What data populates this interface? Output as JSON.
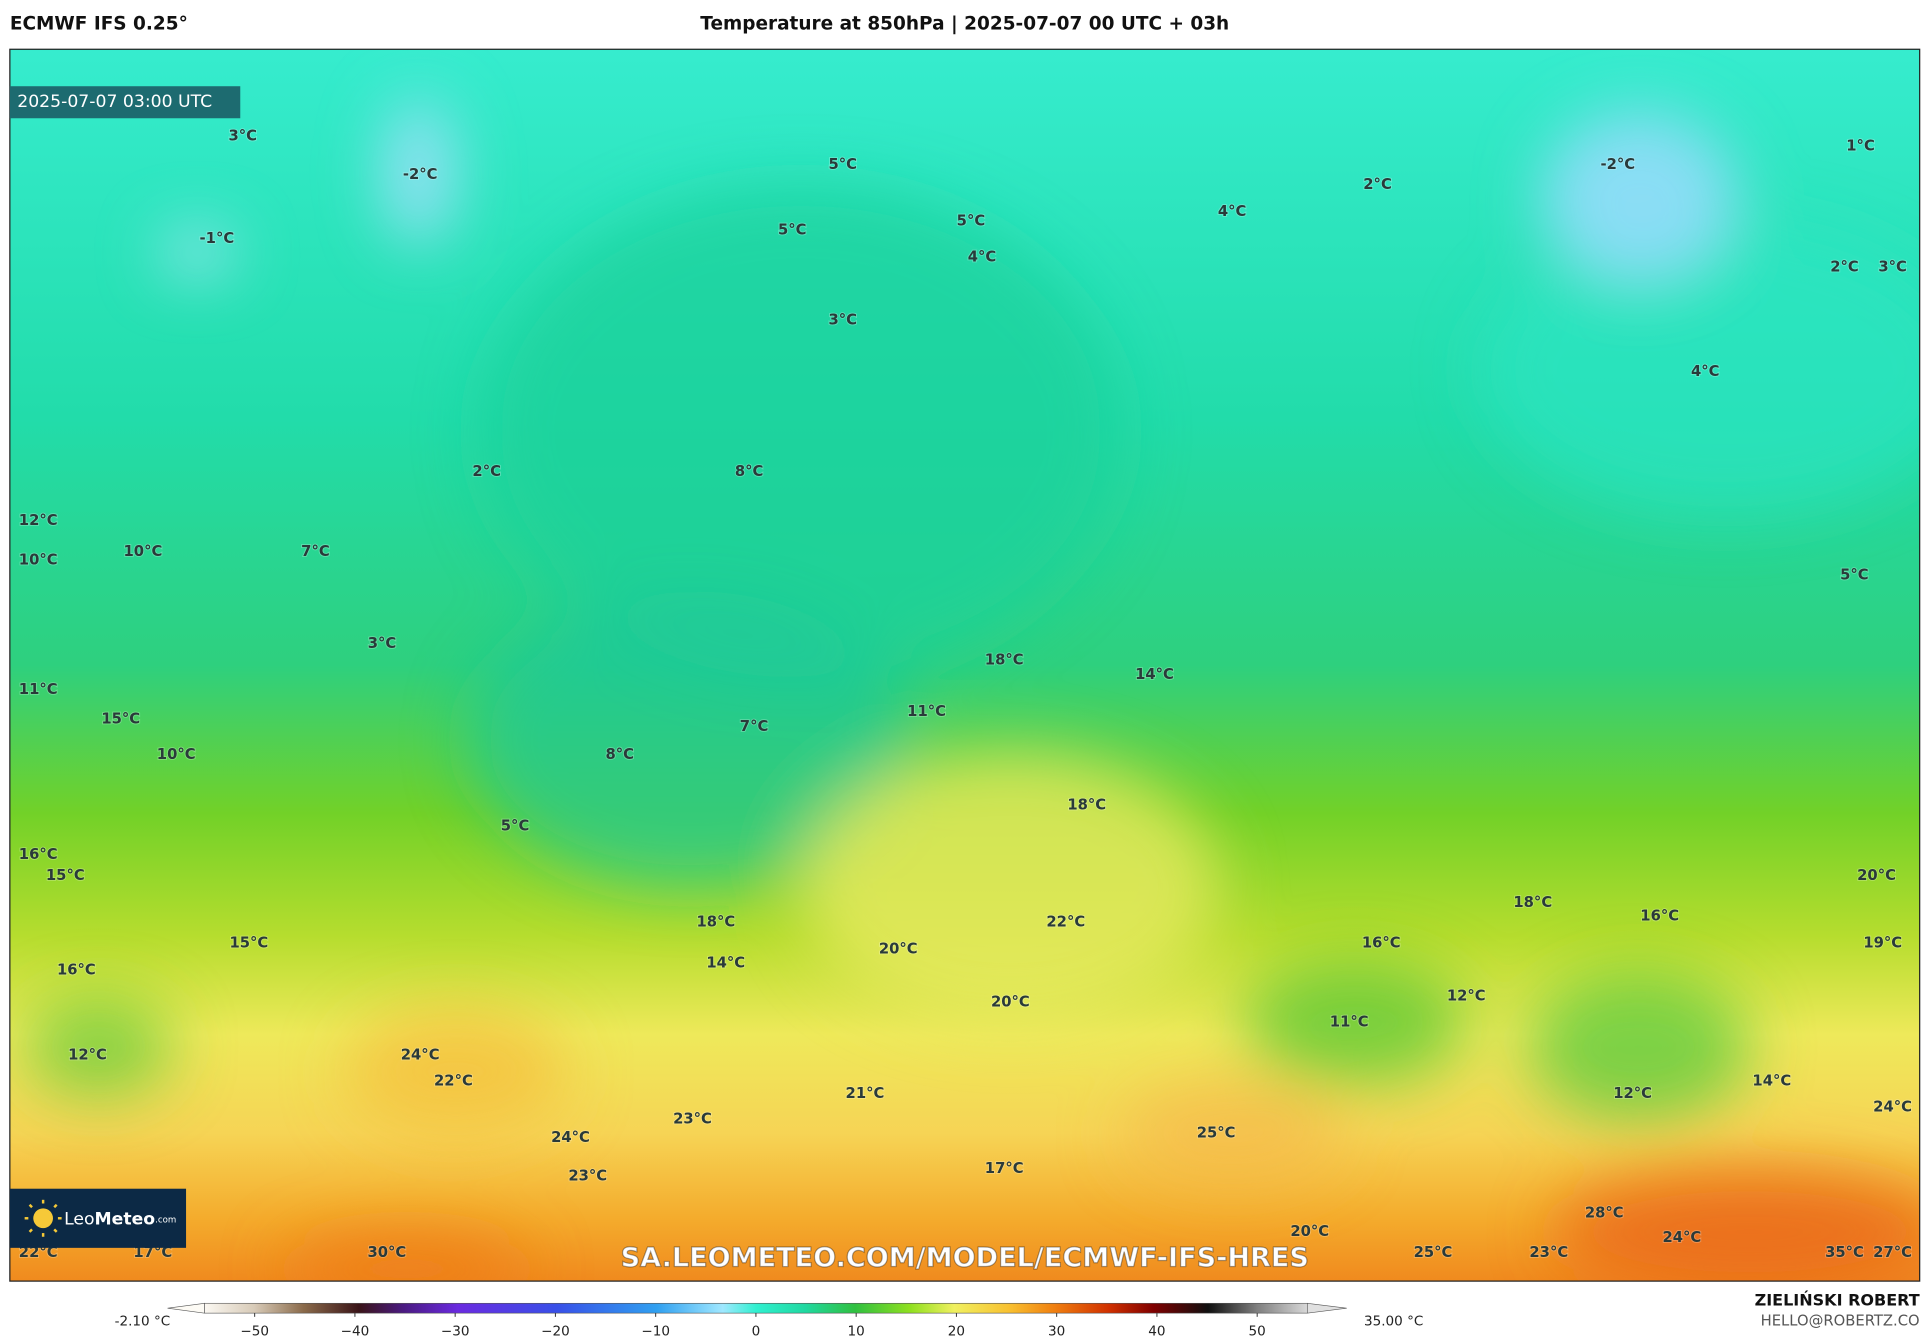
{
  "header": {
    "model": "ECMWF IFS 0.25°",
    "title": "Temperature at 850hPa | 2025-07-07 00 UTC + 03h"
  },
  "map": {
    "timestamp": "2025-07-07 03:00 UTC",
    "watermark": "SA.LEOMETEO.COM/MODEL/ECMWF-IFS-HRES",
    "labels": [
      "3°C",
      "-2°C",
      "-1°C",
      "5°C",
      "5°C",
      "5°C",
      "4°C",
      "3°C",
      "2°C",
      "4°C",
      "-2°C",
      "1°C",
      "2°C",
      "3°C",
      "4°C",
      "2°C",
      "8°C",
      "12°C",
      "10°C",
      "10°C",
      "7°C",
      "5°C",
      "3°C",
      "18°C",
      "14°C",
      "11°C",
      "11°C",
      "15°C",
      "7°C",
      "10°C",
      "8°C",
      "18°C",
      "5°C",
      "16°C",
      "15°C",
      "20°C",
      "18°C",
      "16°C",
      "18°C",
      "22°C",
      "15°C",
      "16°C",
      "20°C",
      "19°C",
      "14°C",
      "16°C",
      "12°C",
      "20°C",
      "11°C",
      "12°C",
      "24°C",
      "22°C",
      "14°C",
      "21°C",
      "12°C",
      "24°C",
      "23°C",
      "25°C",
      "24°C",
      "17°C",
      "23°C",
      "28°C",
      "24°C",
      "20°C",
      "30°C",
      "25°C",
      "23°C",
      "35°C",
      "27°C",
      "22°C",
      "17°C"
    ]
  },
  "logo": {
    "light": "Leo",
    "bold": "Meteo",
    "suffix": ".com"
  },
  "colorbar": {
    "min_label": "-2.10 °C",
    "max_label": "35.00 °C",
    "range": [
      -55,
      55
    ],
    "ticks": [
      {
        "value": -50,
        "label": "−50"
      },
      {
        "value": -40,
        "label": "−40"
      },
      {
        "value": -30,
        "label": "−30"
      },
      {
        "value": -20,
        "label": "−20"
      },
      {
        "value": -10,
        "label": "−10"
      },
      0,
      10,
      20,
      30,
      40,
      50
    ]
  },
  "footer": {
    "author": "ZIELIŃSKI ROBERT",
    "email": "HELLO@ROBERTZ.CO"
  }
}
